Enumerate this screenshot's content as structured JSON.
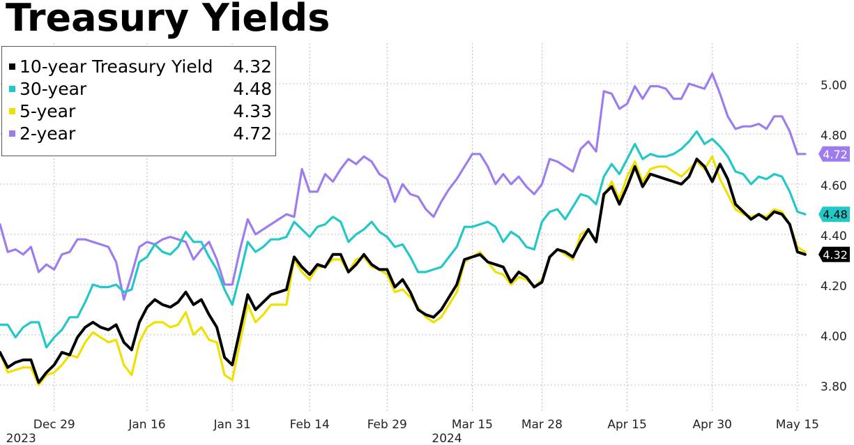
{
  "title": "Treasury Yields",
  "colors": {
    "ten_year": "#000000",
    "thirty_year": "#22c7c7",
    "five_year": "#f0e000",
    "two_year": "#9d7cf0",
    "grid": "#bbbbbb",
    "axis_text": "#222222"
  },
  "chart_data": {
    "type": "line",
    "title": "Treasury Yields",
    "xlabel": "",
    "ylabel": "",
    "ylim": [
      3.7,
      5.12
    ],
    "grid": true,
    "legend_position": "top-left",
    "x_ticks": [
      {
        "x": 7,
        "label": "Dec 29"
      },
      {
        "x": 19,
        "label": "Jan 16"
      },
      {
        "x": 30,
        "label": "Jan 31"
      },
      {
        "x": 40,
        "label": "Feb 14"
      },
      {
        "x": 50,
        "label": "Feb 29"
      },
      {
        "x": 61,
        "label": "Mar 15"
      },
      {
        "x": 70,
        "label": "Mar 28"
      },
      {
        "x": 81,
        "label": "Apr 15"
      },
      {
        "x": 92,
        "label": "Apr 30"
      },
      {
        "x": 103,
        "label": "May 15"
      }
    ],
    "year_labels": [
      {
        "x": 2,
        "label": "2023"
      },
      {
        "x": 57,
        "label": "2024"
      }
    ],
    "y_ticks": [
      "3.80",
      "4.00",
      "4.20",
      "4.40",
      "4.60",
      "4.80",
      "5.00"
    ],
    "y_tick_values": [
      3.8,
      4.0,
      4.2,
      4.4,
      4.6,
      4.8,
      5.0
    ],
    "series": [
      {
        "name": "2-year",
        "key": "two_year",
        "last": "4.72",
        "values": [
          4.44,
          4.33,
          4.34,
          4.32,
          4.35,
          4.25,
          4.28,
          4.26,
          4.32,
          4.33,
          4.38,
          4.38,
          4.37,
          4.36,
          4.35,
          4.29,
          4.14,
          4.24,
          4.35,
          4.37,
          4.36,
          4.38,
          4.39,
          4.38,
          4.37,
          4.3,
          4.34,
          4.37,
          4.3,
          4.2,
          4.2,
          4.34,
          4.46,
          4.4,
          4.42,
          4.44,
          4.46,
          4.48,
          4.47,
          4.66,
          4.57,
          4.57,
          4.64,
          4.61,
          4.66,
          4.7,
          4.68,
          4.71,
          4.69,
          4.64,
          4.62,
          4.53,
          4.6,
          4.56,
          4.55,
          4.5,
          4.47,
          4.53,
          4.58,
          4.62,
          4.67,
          4.72,
          4.72,
          4.67,
          4.6,
          4.64,
          4.6,
          4.63,
          4.59,
          4.56,
          4.6,
          4.7,
          4.69,
          4.67,
          4.65,
          4.74,
          4.77,
          4.73,
          4.97,
          4.96,
          4.9,
          4.92,
          4.99,
          4.94,
          4.99,
          4.99,
          4.98,
          4.94,
          4.94,
          5.0,
          4.99,
          4.98,
          5.04,
          4.96,
          4.87,
          4.82,
          4.83,
          4.83,
          4.84,
          4.82,
          4.87,
          4.87,
          4.81,
          4.72,
          4.72
        ]
      },
      {
        "name": "30-year",
        "key": "thirty_year",
        "last": "4.48",
        "values": [
          4.04,
          4.04,
          3.99,
          4.03,
          4.05,
          4.05,
          3.95,
          3.99,
          4.02,
          4.07,
          4.07,
          4.13,
          4.2,
          4.19,
          4.19,
          4.2,
          4.17,
          4.18,
          4.29,
          4.31,
          4.36,
          4.33,
          4.32,
          4.35,
          4.41,
          4.37,
          4.37,
          4.31,
          4.26,
          4.18,
          4.12,
          4.24,
          4.37,
          4.33,
          4.35,
          4.38,
          4.38,
          4.39,
          4.45,
          4.42,
          4.39,
          4.43,
          4.44,
          4.47,
          4.45,
          4.37,
          4.4,
          4.42,
          4.45,
          4.41,
          4.39,
          4.35,
          4.36,
          4.31,
          4.25,
          4.25,
          4.26,
          4.27,
          4.31,
          4.35,
          4.43,
          4.43,
          4.44,
          4.45,
          4.43,
          4.37,
          4.41,
          4.39,
          4.35,
          4.34,
          4.45,
          4.49,
          4.5,
          4.46,
          4.51,
          4.56,
          4.55,
          4.52,
          4.63,
          4.68,
          4.64,
          4.7,
          4.76,
          4.7,
          4.72,
          4.71,
          4.71,
          4.72,
          4.74,
          4.77,
          4.81,
          4.76,
          4.78,
          4.75,
          4.71,
          4.65,
          4.64,
          4.6,
          4.63,
          4.62,
          4.64,
          4.63,
          4.57,
          4.49,
          4.48
        ]
      },
      {
        "name": "5-year",
        "key": "five_year",
        "last": "4.33",
        "values": [
          3.93,
          3.85,
          3.86,
          3.87,
          3.87,
          3.8,
          3.84,
          3.85,
          3.88,
          3.92,
          3.91,
          3.97,
          4.01,
          3.99,
          3.97,
          3.98,
          3.88,
          3.84,
          3.97,
          4.03,
          4.05,
          4.05,
          4.03,
          4.04,
          4.09,
          4.0,
          4.03,
          3.98,
          3.97,
          3.84,
          3.82,
          3.97,
          4.12,
          4.05,
          4.08,
          4.12,
          4.12,
          4.12,
          4.3,
          4.25,
          4.22,
          4.27,
          4.27,
          4.3,
          4.3,
          4.25,
          4.3,
          4.31,
          4.27,
          4.26,
          4.24,
          4.17,
          4.18,
          4.15,
          4.11,
          4.07,
          4.05,
          4.07,
          4.12,
          4.17,
          4.29,
          4.31,
          4.33,
          4.29,
          4.25,
          4.24,
          4.2,
          4.23,
          4.22,
          4.19,
          4.22,
          4.31,
          4.34,
          4.32,
          4.3,
          4.4,
          4.42,
          4.37,
          4.55,
          4.61,
          4.54,
          4.63,
          4.69,
          4.61,
          4.66,
          4.67,
          4.67,
          4.65,
          4.63,
          4.66,
          4.69,
          4.66,
          4.71,
          4.62,
          4.56,
          4.5,
          4.48,
          4.47,
          4.48,
          4.47,
          4.5,
          4.49,
          4.44,
          4.35,
          4.33
        ]
      },
      {
        "name": "10-year Treasury Yield",
        "key": "ten_year",
        "last": "4.32",
        "values": [
          3.93,
          3.87,
          3.89,
          3.9,
          3.9,
          3.81,
          3.85,
          3.88,
          3.93,
          3.92,
          3.99,
          4.03,
          4.05,
          4.03,
          4.02,
          4.04,
          3.97,
          3.94,
          4.05,
          4.11,
          4.14,
          4.12,
          4.11,
          4.13,
          4.17,
          4.12,
          4.14,
          4.08,
          4.03,
          3.91,
          3.88,
          4.02,
          4.16,
          4.1,
          4.13,
          4.16,
          4.17,
          4.18,
          4.31,
          4.27,
          4.24,
          4.28,
          4.27,
          4.32,
          4.32,
          4.25,
          4.28,
          4.32,
          4.28,
          4.26,
          4.26,
          4.19,
          4.22,
          4.17,
          4.1,
          4.08,
          4.07,
          4.1,
          4.15,
          4.2,
          4.3,
          4.31,
          4.32,
          4.29,
          4.28,
          4.27,
          4.21,
          4.25,
          4.23,
          4.19,
          4.21,
          4.31,
          4.34,
          4.33,
          4.31,
          4.37,
          4.42,
          4.37,
          4.56,
          4.59,
          4.52,
          4.59,
          4.67,
          4.59,
          4.64,
          4.63,
          4.62,
          4.61,
          4.6,
          4.63,
          4.7,
          4.67,
          4.61,
          4.68,
          4.62,
          4.52,
          4.49,
          4.46,
          4.48,
          4.46,
          4.49,
          4.48,
          4.44,
          4.33,
          4.32
        ]
      }
    ]
  },
  "legend": [
    {
      "key": "ten_year",
      "label": "10-year Treasury Yield",
      "value": "4.32"
    },
    {
      "key": "thirty_year",
      "label": "30-year",
      "value": "4.48"
    },
    {
      "key": "five_year",
      "label": "5-year",
      "value": "4.33"
    },
    {
      "key": "two_year",
      "label": "2-year",
      "value": "4.72"
    }
  ]
}
